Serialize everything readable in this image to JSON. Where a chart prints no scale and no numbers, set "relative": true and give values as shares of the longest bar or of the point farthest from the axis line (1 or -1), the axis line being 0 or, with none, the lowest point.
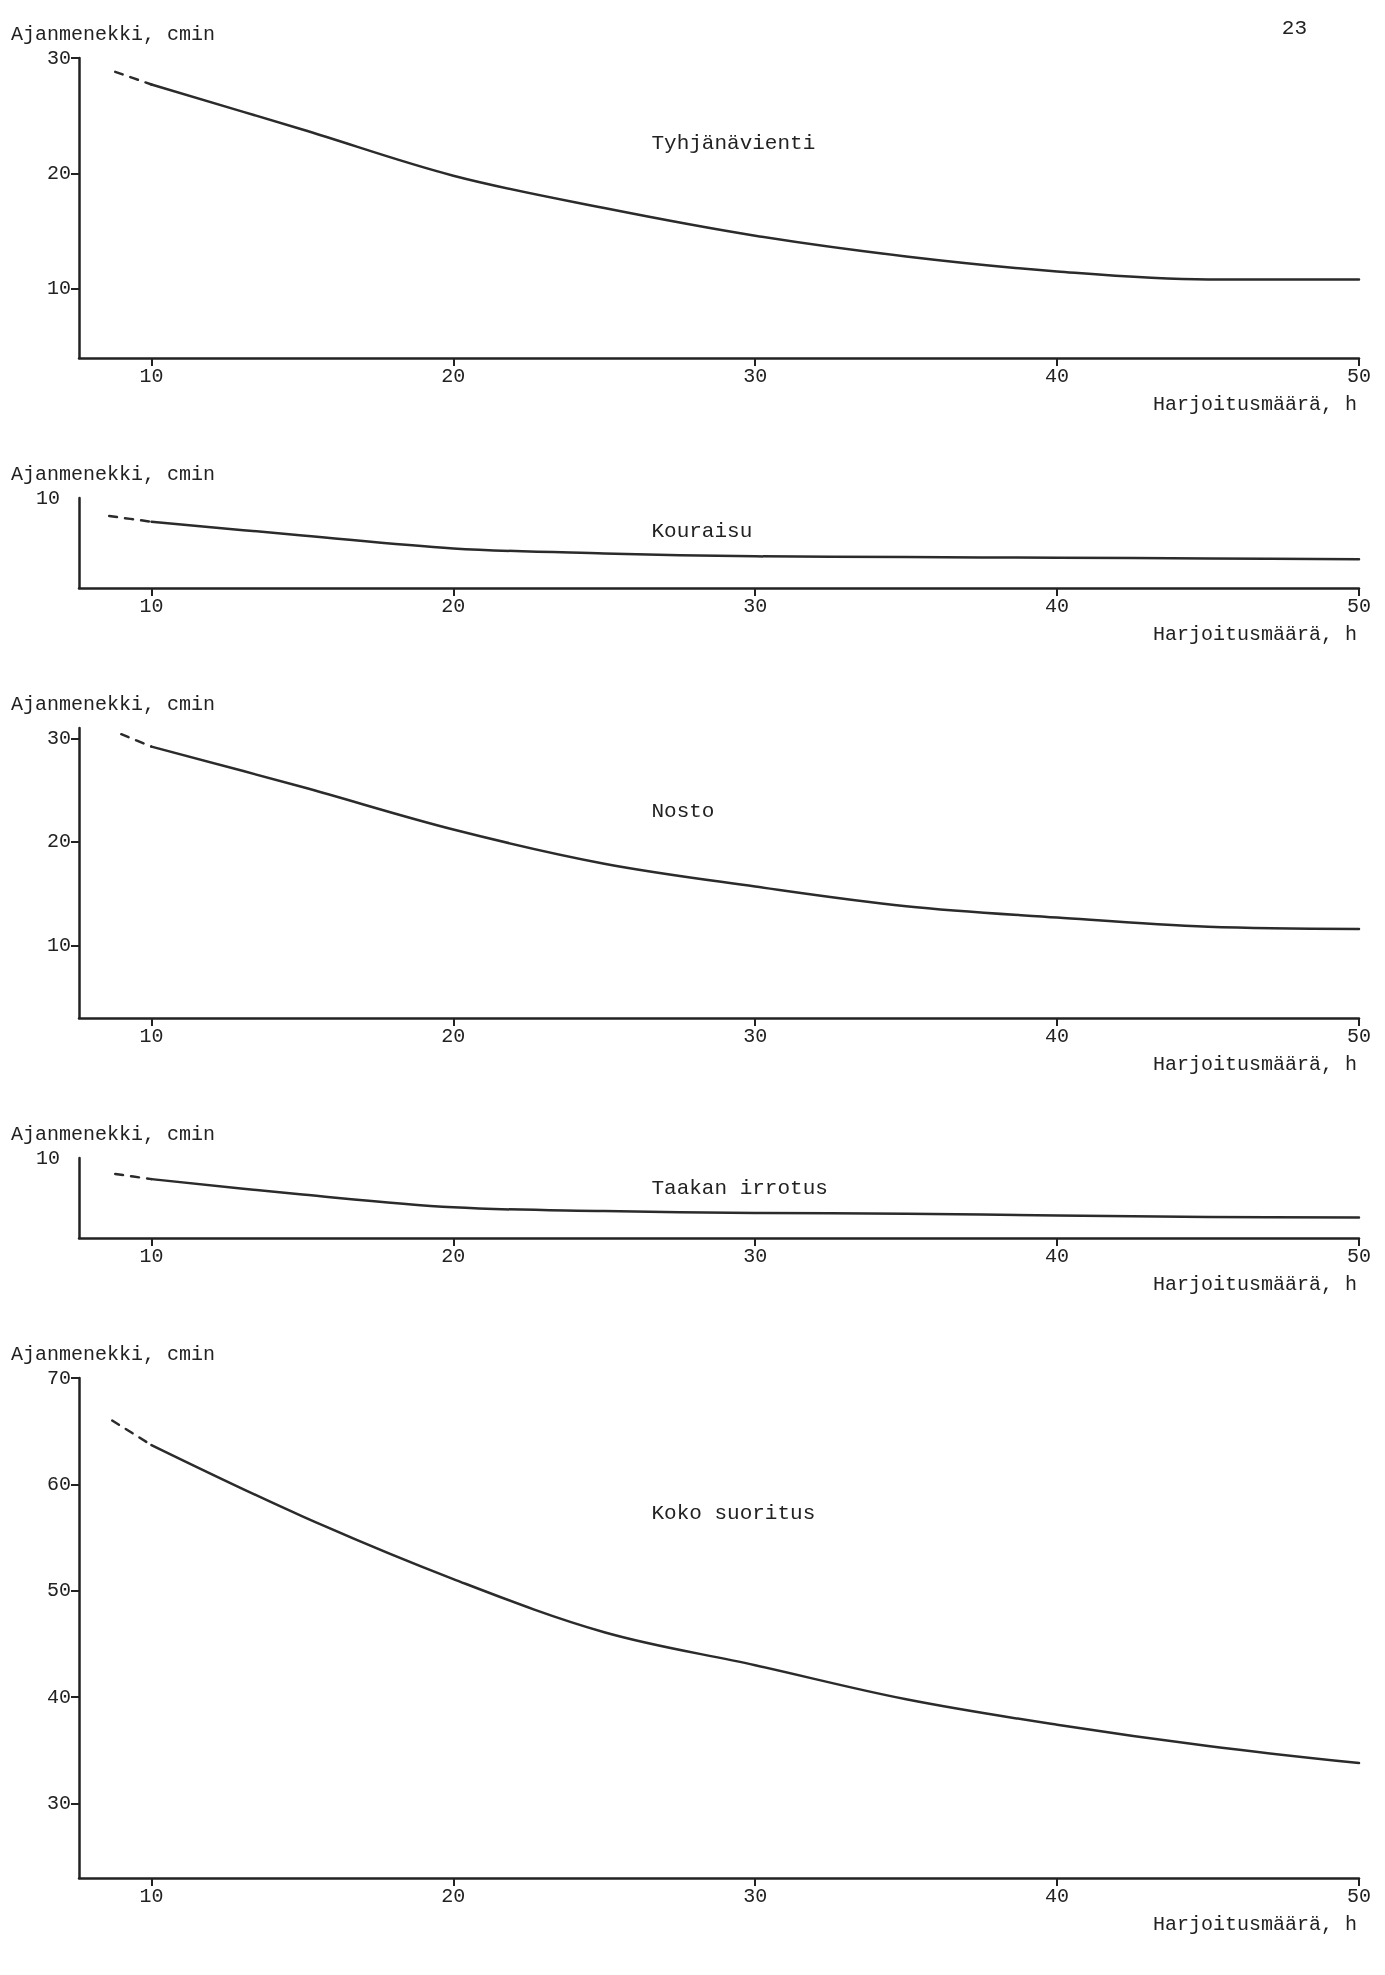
{
  "chart_data": [
    {
      "type": "line",
      "ylabel": "Ajanmenekki, cmin",
      "xlabel": "Harjoitusmäärä, h",
      "annotations": [
        "Tyhjänävienti",
        "23"
      ],
      "xlim": [
        7.6,
        50
      ],
      "xticks": [
        10,
        20,
        30,
        40,
        50
      ],
      "ylim": [
        4,
        30
      ],
      "yticks": [
        10,
        20,
        30
      ],
      "marker": "none",
      "series": [
        {
          "color": "#2b2b2b",
          "line_style": "dashed",
          "x": [
            8.8,
            10
          ],
          "values": [
            28.8,
            27.7
          ]
        },
        {
          "color": "#2b2b2b",
          "line_style": "solid",
          "x": [
            10,
            15,
            20,
            25,
            30,
            35,
            40,
            45,
            50
          ],
          "values": [
            27.7,
            23.8,
            19.8,
            17.0,
            14.6,
            12.8,
            11.5,
            10.8,
            10.8
          ]
        }
      ]
    },
    {
      "type": "line",
      "relative": true,
      "ylabel": "Ajanmenekki, cmin",
      "xlabel": "Harjoitusmäärä, h",
      "annotations": [
        "Kouraisu",
        "10"
      ],
      "xlim": [
        7.6,
        50
      ],
      "xticks": [
        10,
        20,
        30,
        40,
        50
      ],
      "marker": "none",
      "series": [
        {
          "color": "#2b2b2b",
          "line_style": "dashed",
          "x": [
            8.6,
            10
          ],
          "values": [
            1,
            0.92
          ]
        },
        {
          "color": "#2b2b2b",
          "line_style": "solid",
          "x": [
            10,
            15,
            20,
            25,
            30,
            35,
            40,
            45,
            50
          ],
          "values": [
            0.92,
            0.73,
            0.55,
            0.48,
            0.44,
            0.43,
            0.42,
            0.41,
            0.4
          ]
        }
      ]
    },
    {
      "type": "line",
      "ylabel": "Ajanmenekki, cmin",
      "xlabel": "Harjoitusmäärä, h",
      "annotations": [
        "Nosto"
      ],
      "xlim": [
        7.6,
        50
      ],
      "xticks": [
        10,
        20,
        30,
        40,
        50
      ],
      "ylim": [
        3,
        31
      ],
      "yticks": [
        10,
        20,
        30
      ],
      "marker": "none",
      "series": [
        {
          "color": "#2b2b2b",
          "line_style": "dashed",
          "x": [
            9,
            10
          ],
          "values": [
            30.4,
            29.2
          ]
        },
        {
          "color": "#2b2b2b",
          "line_style": "solid",
          "x": [
            10,
            15,
            20,
            25,
            30,
            35,
            40,
            45,
            50
          ],
          "values": [
            29.2,
            25.3,
            21.2,
            17.9,
            15.7,
            13.8,
            12.7,
            11.8,
            11.6
          ]
        }
      ]
    },
    {
      "type": "line",
      "relative": true,
      "ylabel": "Ajanmenekki, cmin",
      "xlabel": "Harjoitusmäärä, h",
      "annotations": [
        "Taakan irrotus",
        "10"
      ],
      "xlim": [
        7.6,
        50
      ],
      "xticks": [
        10,
        20,
        30,
        40,
        50
      ],
      "marker": "none",
      "series": [
        {
          "color": "#2b2b2b",
          "line_style": "dashed",
          "x": [
            8.8,
            10
          ],
          "values": [
            1,
            0.92
          ]
        },
        {
          "color": "#2b2b2b",
          "line_style": "solid",
          "x": [
            10,
            15,
            20,
            25,
            30,
            35,
            40,
            45,
            50
          ],
          "values": [
            0.92,
            0.68,
            0.48,
            0.42,
            0.39,
            0.38,
            0.35,
            0.33,
            0.32
          ]
        }
      ]
    },
    {
      "type": "line",
      "ylabel": "Ajanmenekki, cmin",
      "xlabel": "Harjoitusmäärä, h",
      "annotations": [
        "Koko suoritus"
      ],
      "xlim": [
        7.6,
        50
      ],
      "xticks": [
        10,
        20,
        30,
        40,
        50
      ],
      "ylim": [
        23,
        70
      ],
      "yticks": [
        30,
        40,
        50,
        60,
        70
      ],
      "marker": "none",
      "series": [
        {
          "color": "#2b2b2b",
          "line_style": "dashed",
          "x": [
            8.7,
            10
          ],
          "values": [
            66.0,
            63.7
          ]
        },
        {
          "color": "#2b2b2b",
          "line_style": "solid",
          "x": [
            10,
            15,
            20,
            25,
            30,
            35,
            40,
            45,
            50
          ],
          "values": [
            63.7,
            57.0,
            51.1,
            46.1,
            43.0,
            39.8,
            37.4,
            35.4,
            33.8
          ]
        }
      ]
    }
  ]
}
